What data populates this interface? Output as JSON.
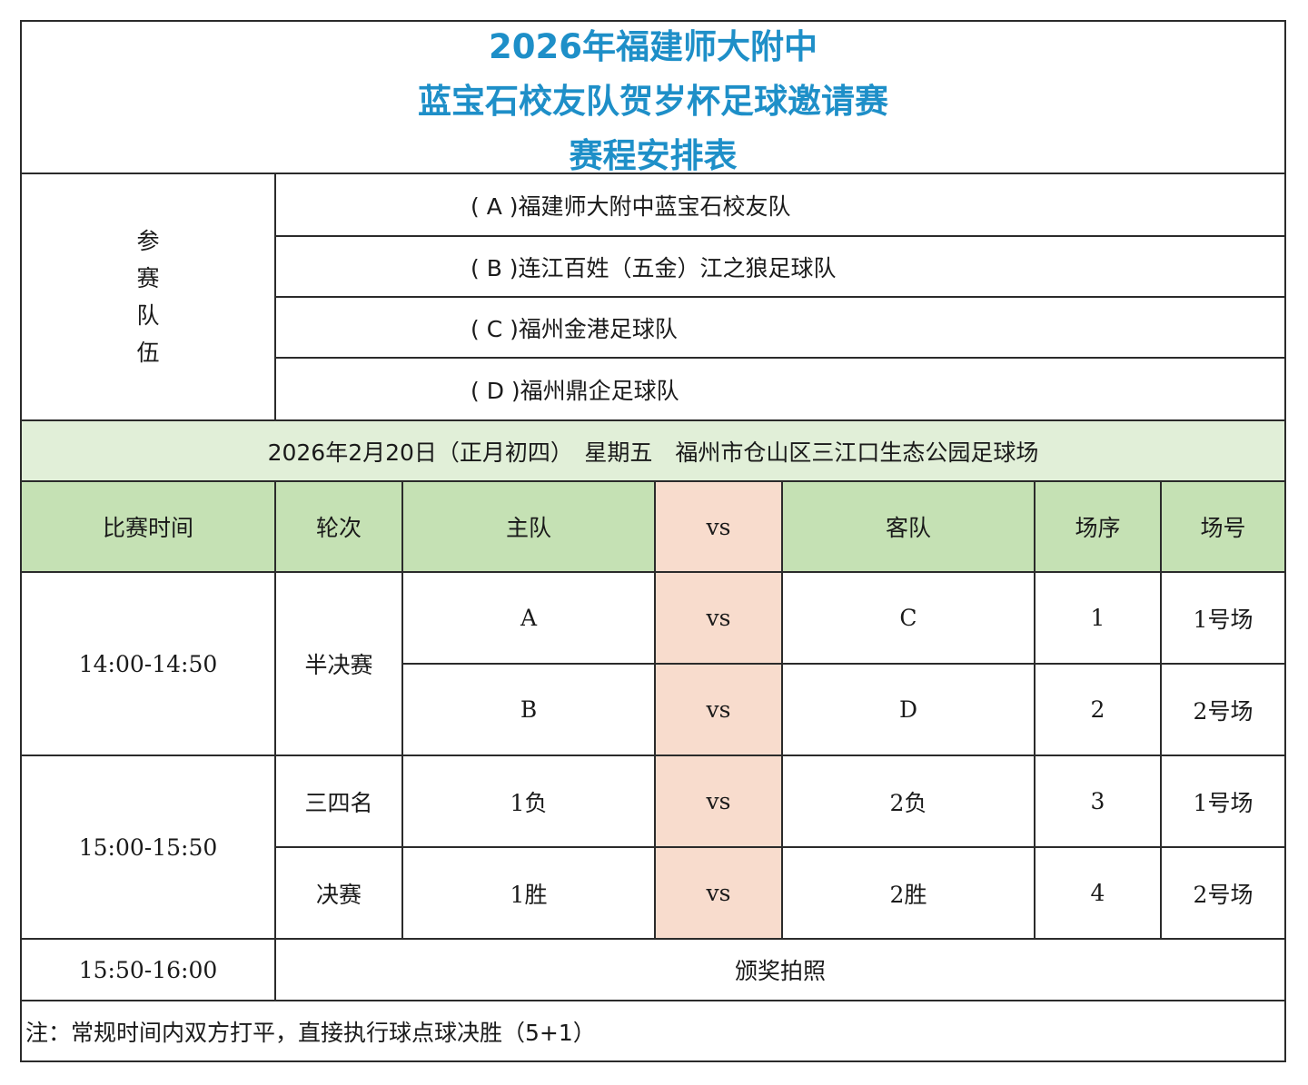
{
  "title": {
    "line1": "2026年福建师大附中",
    "line2": "蓝宝石校友队贺岁杯足球邀请赛",
    "line3": "赛程安排表"
  },
  "teams_section": {
    "label_chars": [
      "参",
      "赛",
      "队",
      "伍"
    ],
    "teams": [
      "( A )福建师大附中蓝宝石校友队",
      "( B )连江百姓（五金）江之狼足球队",
      "( C )福州金港足球队",
      "( D )福州鼎企足球队"
    ]
  },
  "date_line": "2026年2月20日（正月初四）　星期五　福州市仓山区三江口生态公园足球场",
  "headers": [
    "比赛时间",
    "轮次",
    "主队",
    "vs",
    "客队",
    "场序",
    "场号"
  ],
  "slots": [
    {
      "time": "14:00-14:50",
      "round_label": "半决赛",
      "matches": [
        {
          "home": "A",
          "vs": "vs",
          "away": "C",
          "order": "1",
          "field": "1号场"
        },
        {
          "home": "B",
          "vs": "vs",
          "away": "D",
          "order": "2",
          "field": "2号场"
        }
      ]
    },
    {
      "time": "15:00-15:50",
      "matches": [
        {
          "round": "三四名",
          "home": "1负",
          "vs": "vs",
          "away": "2负",
          "order": "3",
          "field": "1号场"
        },
        {
          "round": "决赛",
          "home": "1胜",
          "vs": "vs",
          "away": "2胜",
          "order": "4",
          "field": "2号场"
        }
      ]
    }
  ],
  "ceremony": {
    "time": "15:50-16:00",
    "event": "颁奖拍照"
  },
  "note": "注：常规时间内双方打平，直接执行球点球决胜（5+1）",
  "colors": {
    "title": "#1e8fc8",
    "date_bar": "#e1efd8",
    "header": "#c5e1b4",
    "vs_column": "#f8dccd"
  }
}
